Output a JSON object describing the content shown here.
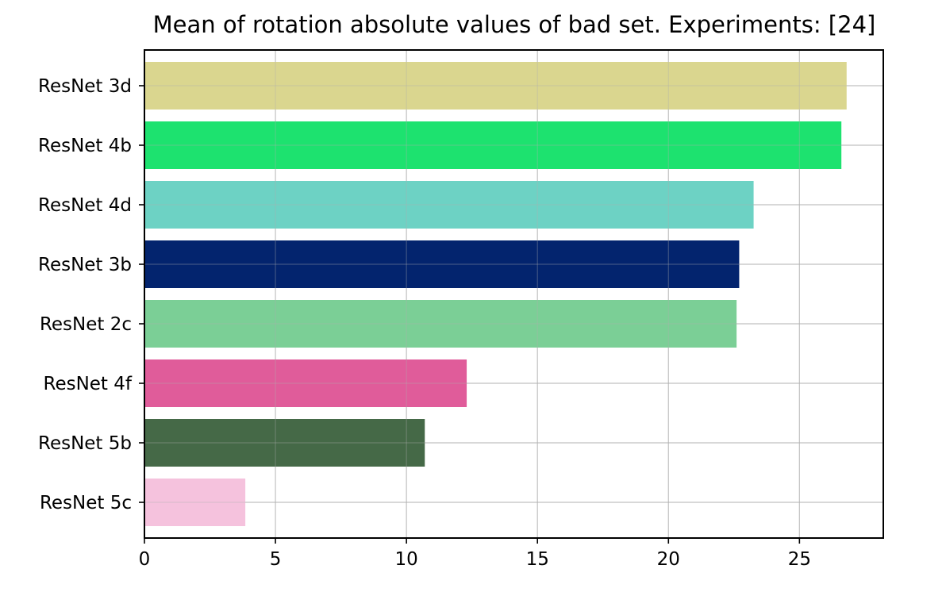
{
  "chart_data": {
    "type": "bar",
    "orientation": "horizontal",
    "title": "Mean of rotation absolute values of bad set. Experiments: [24]",
    "xlabel": "",
    "ylabel": "",
    "categories": [
      "ResNet 3d",
      "ResNet 4b",
      "ResNet 4d",
      "ResNet 3b",
      "ResNet 2c",
      "ResNet 4f",
      "ResNet 5b",
      "ResNet 5c"
    ],
    "values": [
      26.8,
      26.6,
      23.25,
      22.7,
      22.6,
      12.3,
      10.7,
      3.85
    ],
    "colors": [
      "#dad68f",
      "#1de26f",
      "#6dd2c4",
      "#03246e",
      "#7bcf96",
      "#e05c9a",
      "#456947",
      "#f5c2dd"
    ],
    "xlim": [
      0,
      28.2
    ],
    "xticks": [
      0,
      5,
      10,
      15,
      20,
      25
    ],
    "grid": true
  }
}
